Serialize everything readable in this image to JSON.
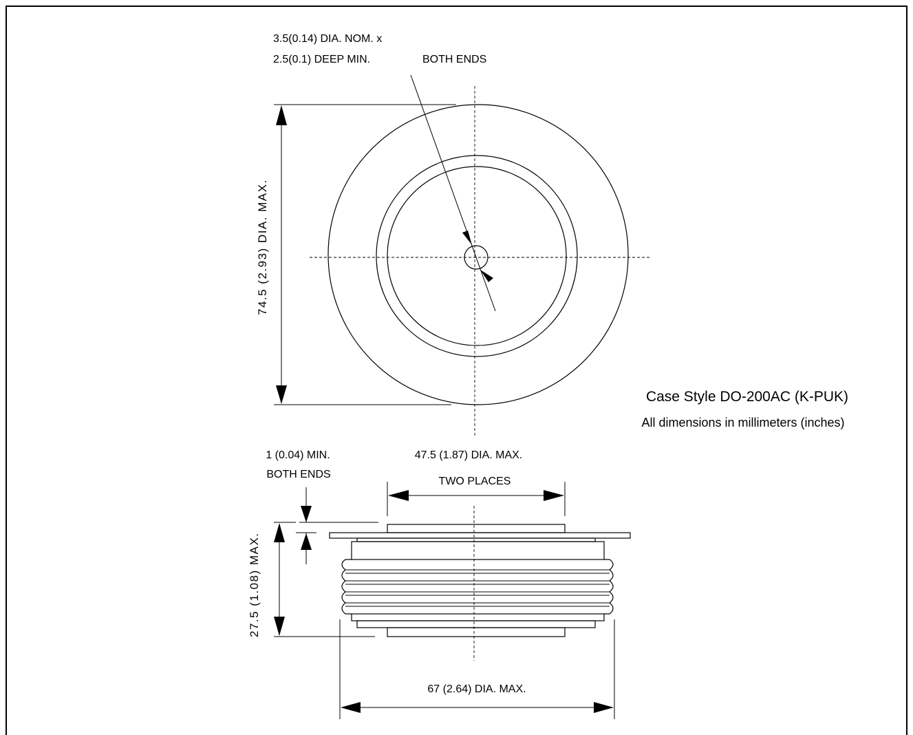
{
  "labels": {
    "hole_line1": "3.5(0.14) DIA. NOM. x",
    "hole_line2": "2.5(0.1) DEEP MIN.",
    "hole_both_ends": "BOTH ENDS",
    "outer_dia": "74.5 (2.93) DIA. MAX.",
    "case_title": "Case Style DO-200AC (K-PUK)",
    "units_note": "All dimensions in millimeters (inches)",
    "min_1": "1 (0.04) MIN.",
    "min_2": "BOTH ENDS",
    "pole_dia": "47.5 (1.87) DIA. MAX.",
    "two_places": "TWO PLACES",
    "height": "27.5 (1.08) MAX.",
    "body_dia": "67 (2.64) DIA. MAX."
  }
}
